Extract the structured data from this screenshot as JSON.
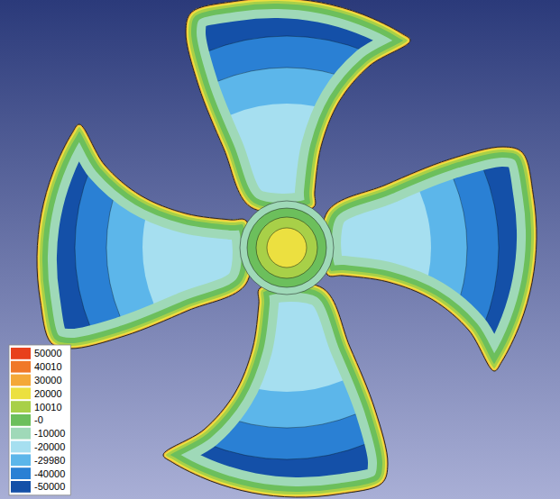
{
  "chart_data": {
    "type": "contour",
    "levels": [
      50000,
      40010,
      30000,
      20000,
      10010,
      {
        "value": 0,
        "label": "-0"
      },
      -10000,
      -20000,
      -29980,
      -40000,
      -50000
    ],
    "colors": [
      "#e8401c",
      "#f07828",
      "#f4a838",
      "#ece040",
      "#a8d048",
      "#6cbf5c",
      "#9fd9b8",
      "#a6dff0",
      "#5cb6ea",
      "#2a80d4",
      "#1450a8"
    ],
    "hub_values": [
      -10000,
      0,
      10010,
      20000
    ],
    "blade_values": [
      -20000,
      -29980,
      -40000,
      -50000
    ],
    "edge_values": [
      -10000,
      0,
      10010,
      20000,
      30000
    ]
  }
}
